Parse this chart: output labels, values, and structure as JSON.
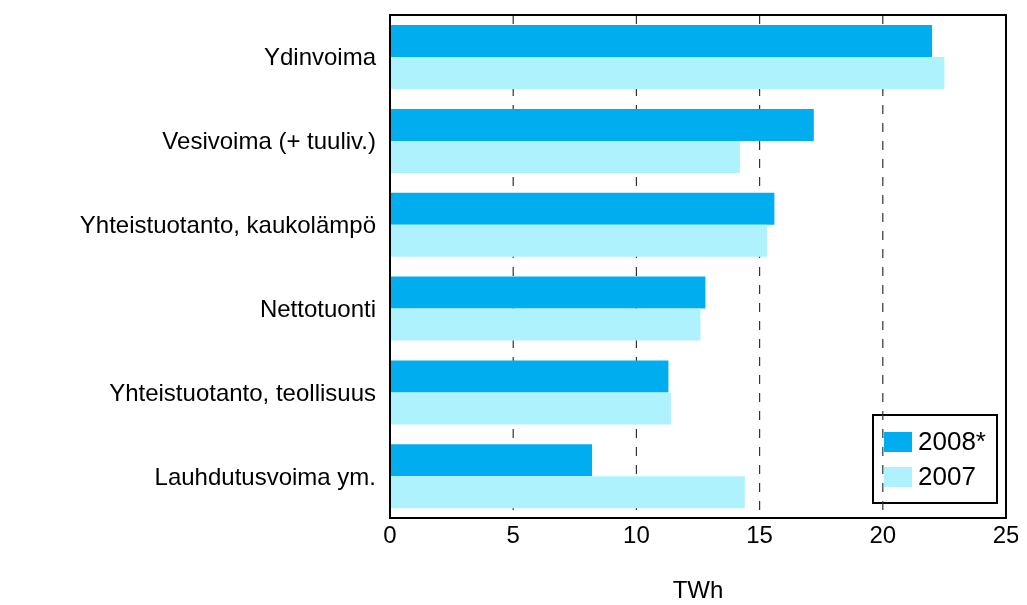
{
  "chart_data": {
    "type": "bar",
    "orientation": "horizontal",
    "xlabel": "TWh",
    "categories": [
      "Ydinvoima",
      "Vesivoima (+ tuuliv.)",
      "Yhteistuotanto, kaukolämpö",
      "Nettotuonti",
      "Yhteistuotanto, teollisuus",
      "Lauhdutusvoima ym."
    ],
    "series": [
      {
        "name": "2008*",
        "color": "#00aeef",
        "values": [
          22.0,
          17.2,
          15.6,
          12.8,
          11.3,
          8.2
        ]
      },
      {
        "name": "2007",
        "color": "#aef2fe",
        "values": [
          22.5,
          14.2,
          15.3,
          12.6,
          11.4,
          14.4
        ]
      }
    ],
    "xlim": [
      0,
      25
    ],
    "xticks": [
      0,
      5,
      10,
      15,
      20,
      25
    ],
    "grid": "x",
    "legend": "bottom right"
  }
}
